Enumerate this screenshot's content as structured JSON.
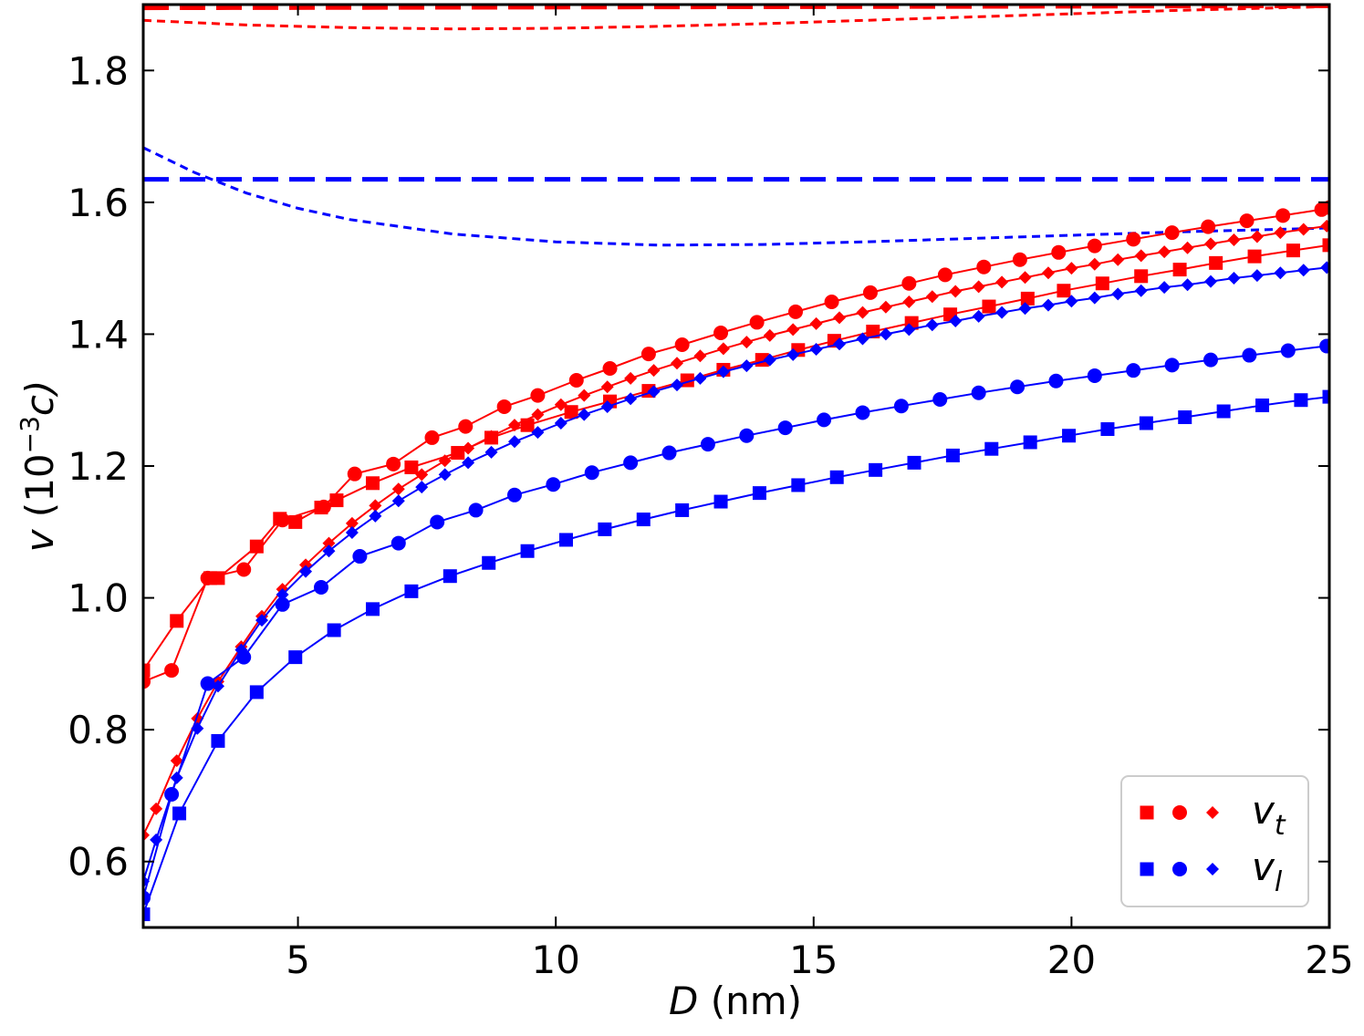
{
  "chart_data": {
    "type": "line",
    "title": "",
    "xlabel_var": "D",
    "xlabel_unit": " (nm)",
    "ylabel_var": "v",
    "ylabel_unit": " (10",
    "ylabel_exp": "−3",
    "ylabel_tail": "c)",
    "xlim": [
      2,
      25
    ],
    "ylim": [
      0.5,
      1.9
    ],
    "xticks": [
      5,
      10,
      15,
      20,
      25
    ],
    "yticks": [
      0.6,
      0.8,
      1.0,
      1.2,
      1.4,
      1.6,
      1.8
    ],
    "ytick_labels": [
      "0.6",
      "0.8",
      "1.0",
      "1.2",
      "1.4",
      "1.6",
      "1.8"
    ],
    "colors": {
      "red": "#ff0000",
      "blue": "#0000ff"
    },
    "legend": {
      "location": "lower-right",
      "entries": [
        {
          "label_var": "v",
          "label_sub": "t",
          "color": "#ff0000"
        },
        {
          "label_var": "v",
          "label_sub": "l",
          "color": "#0000ff"
        }
      ]
    },
    "reference_lines": [
      {
        "name": "red-asymptote-thick",
        "color": "#ff0000",
        "style": "long-dash",
        "x": [
          2,
          25
        ],
        "y": [
          1.895,
          1.898
        ]
      },
      {
        "name": "red-asymptote-thin",
        "color": "#ff0000",
        "style": "short-dash",
        "x": [
          2,
          4,
          6,
          8,
          10,
          12,
          14,
          16,
          18,
          20,
          22,
          25
        ],
        "y": [
          1.876,
          1.869,
          1.865,
          1.863,
          1.864,
          1.867,
          1.871,
          1.876,
          1.881,
          1.886,
          1.891,
          1.897
        ]
      },
      {
        "name": "blue-asymptote-thick",
        "color": "#0000ff",
        "style": "long-dash",
        "x": [
          2,
          25
        ],
        "y": [
          1.635,
          1.635
        ]
      },
      {
        "name": "blue-asymptote-thin",
        "color": "#0000ff",
        "style": "short-dash",
        "x": [
          2,
          3,
          4,
          5,
          6,
          8,
          10,
          12,
          14,
          16,
          18,
          20,
          22,
          25
        ],
        "y": [
          1.683,
          1.645,
          1.614,
          1.591,
          1.574,
          1.552,
          1.54,
          1.535,
          1.536,
          1.54,
          1.545,
          1.55,
          1.555,
          1.561
        ]
      }
    ],
    "series": [
      {
        "name": "vt-square",
        "color": "#ff0000",
        "marker": "square",
        "x": [
          2.0,
          2.65,
          3.3,
          3.45,
          4.2,
          4.65,
          4.95,
          5.45,
          5.75,
          6.45,
          7.2,
          8.1,
          8.75,
          9.45,
          10.3,
          11.05,
          11.8,
          12.55,
          13.25,
          14.0,
          14.7,
          15.4,
          16.15,
          16.9,
          17.65,
          18.4,
          19.15,
          19.85,
          20.6,
          21.35,
          22.1,
          22.8,
          23.55,
          24.3,
          25.0
        ],
        "y": [
          0.89,
          0.965,
          1.03,
          1.03,
          1.078,
          1.12,
          1.115,
          1.137,
          1.148,
          1.174,
          1.198,
          1.22,
          1.243,
          1.262,
          1.282,
          1.298,
          1.314,
          1.33,
          1.346,
          1.361,
          1.376,
          1.39,
          1.404,
          1.417,
          1.43,
          1.442,
          1.454,
          1.466,
          1.477,
          1.488,
          1.498,
          1.508,
          1.518,
          1.527,
          1.535
        ]
      },
      {
        "name": "vt-circle",
        "color": "#ff0000",
        "marker": "circle",
        "x": [
          2.0,
          2.55,
          3.25,
          3.95,
          4.7,
          5.5,
          6.1,
          6.85,
          7.6,
          8.25,
          9.0,
          9.65,
          10.4,
          11.05,
          11.8,
          12.45,
          13.2,
          13.9,
          14.65,
          15.35,
          16.1,
          16.85,
          17.55,
          18.3,
          19.0,
          19.75,
          20.45,
          21.2,
          21.95,
          22.65,
          23.4,
          24.1,
          24.85,
          25.0
        ],
        "y": [
          0.873,
          0.89,
          1.03,
          1.043,
          1.118,
          1.138,
          1.188,
          1.203,
          1.243,
          1.26,
          1.29,
          1.307,
          1.33,
          1.348,
          1.37,
          1.384,
          1.402,
          1.418,
          1.434,
          1.449,
          1.463,
          1.477,
          1.49,
          1.502,
          1.513,
          1.524,
          1.534,
          1.544,
          1.554,
          1.563,
          1.572,
          1.58,
          1.589,
          1.592
        ]
      },
      {
        "name": "vt-diamond",
        "color": "#ff0000",
        "marker": "diamond",
        "x": [
          2.0,
          2.25,
          2.65,
          3.05,
          3.45,
          3.9,
          4.3,
          4.7,
          5.15,
          5.6,
          6.05,
          6.5,
          6.95,
          7.4,
          7.85,
          8.3,
          8.75,
          9.2,
          9.65,
          10.1,
          10.55,
          11.0,
          11.45,
          11.9,
          12.35,
          12.8,
          13.25,
          13.7,
          14.15,
          14.6,
          15.05,
          15.5,
          15.95,
          16.4,
          16.85,
          17.3,
          17.75,
          18.2,
          18.65,
          19.1,
          19.55,
          20.0,
          20.45,
          20.9,
          21.35,
          21.8,
          22.25,
          22.7,
          23.15,
          23.6,
          24.05,
          24.5,
          24.95
        ],
        "y": [
          0.64,
          0.68,
          0.753,
          0.817,
          0.873,
          0.926,
          0.972,
          1.013,
          1.05,
          1.083,
          1.113,
          1.14,
          1.165,
          1.187,
          1.208,
          1.227,
          1.245,
          1.262,
          1.278,
          1.293,
          1.307,
          1.32,
          1.333,
          1.345,
          1.356,
          1.367,
          1.378,
          1.388,
          1.398,
          1.407,
          1.416,
          1.425,
          1.433,
          1.441,
          1.449,
          1.457,
          1.465,
          1.472,
          1.479,
          1.486,
          1.493,
          1.5,
          1.506,
          1.513,
          1.519,
          1.525,
          1.531,
          1.537,
          1.543,
          1.548,
          1.554,
          1.559,
          1.564
        ]
      },
      {
        "name": "vl-square",
        "color": "#0000ff",
        "marker": "square",
        "x": [
          2.0,
          2.7,
          3.45,
          4.2,
          4.95,
          5.7,
          6.45,
          7.2,
          7.95,
          8.7,
          9.45,
          10.2,
          10.95,
          11.7,
          12.45,
          13.2,
          13.95,
          14.7,
          15.45,
          16.2,
          16.95,
          17.7,
          18.45,
          19.2,
          19.95,
          20.7,
          21.45,
          22.2,
          22.95,
          23.7,
          24.45,
          25.0
        ],
        "y": [
          0.52,
          0.673,
          0.783,
          0.857,
          0.91,
          0.951,
          0.983,
          1.01,
          1.033,
          1.053,
          1.071,
          1.088,
          1.104,
          1.119,
          1.133,
          1.146,
          1.159,
          1.171,
          1.183,
          1.194,
          1.205,
          1.216,
          1.226,
          1.236,
          1.246,
          1.256,
          1.265,
          1.274,
          1.283,
          1.292,
          1.3,
          1.305
        ]
      },
      {
        "name": "vl-circle",
        "color": "#0000ff",
        "marker": "circle",
        "x": [
          2.0,
          2.55,
          3.25,
          3.95,
          4.7,
          5.45,
          6.2,
          6.95,
          7.7,
          8.45,
          9.2,
          9.95,
          10.7,
          11.45,
          12.2,
          12.95,
          13.7,
          14.45,
          15.2,
          15.95,
          16.7,
          17.45,
          18.2,
          18.95,
          19.7,
          20.45,
          21.2,
          21.95,
          22.7,
          23.45,
          24.2,
          24.95
        ],
        "y": [
          0.545,
          0.702,
          0.87,
          0.91,
          0.99,
          1.016,
          1.063,
          1.083,
          1.115,
          1.133,
          1.156,
          1.172,
          1.19,
          1.205,
          1.22,
          1.233,
          1.246,
          1.258,
          1.27,
          1.281,
          1.291,
          1.301,
          1.311,
          1.32,
          1.329,
          1.337,
          1.345,
          1.353,
          1.361,
          1.368,
          1.375,
          1.382
        ]
      },
      {
        "name": "vl-diamond",
        "color": "#0000ff",
        "marker": "diamond",
        "x": [
          2.0,
          2.25,
          2.65,
          3.05,
          3.45,
          3.9,
          4.3,
          4.7,
          5.15,
          5.6,
          6.05,
          6.5,
          6.95,
          7.4,
          7.85,
          8.3,
          8.75,
          9.2,
          9.65,
          10.1,
          10.55,
          11.0,
          11.45,
          11.9,
          12.35,
          12.8,
          13.25,
          13.7,
          14.15,
          14.6,
          15.05,
          15.5,
          15.95,
          16.4,
          16.85,
          17.3,
          17.75,
          18.2,
          18.65,
          19.1,
          19.55,
          20.0,
          20.45,
          20.9,
          21.35,
          21.8,
          22.25,
          22.7,
          23.15,
          23.6,
          24.05,
          24.5,
          24.95
        ],
        "y": [
          0.57,
          0.633,
          0.727,
          0.802,
          0.866,
          0.921,
          0.966,
          1.005,
          1.04,
          1.071,
          1.099,
          1.124,
          1.147,
          1.168,
          1.187,
          1.205,
          1.221,
          1.237,
          1.251,
          1.265,
          1.278,
          1.29,
          1.302,
          1.313,
          1.323,
          1.333,
          1.343,
          1.352,
          1.361,
          1.369,
          1.377,
          1.385,
          1.393,
          1.4,
          1.407,
          1.414,
          1.42,
          1.427,
          1.433,
          1.439,
          1.444,
          1.45,
          1.455,
          1.461,
          1.466,
          1.471,
          1.475,
          1.48,
          1.485,
          1.489,
          1.493,
          1.497,
          1.501
        ]
      }
    ]
  }
}
